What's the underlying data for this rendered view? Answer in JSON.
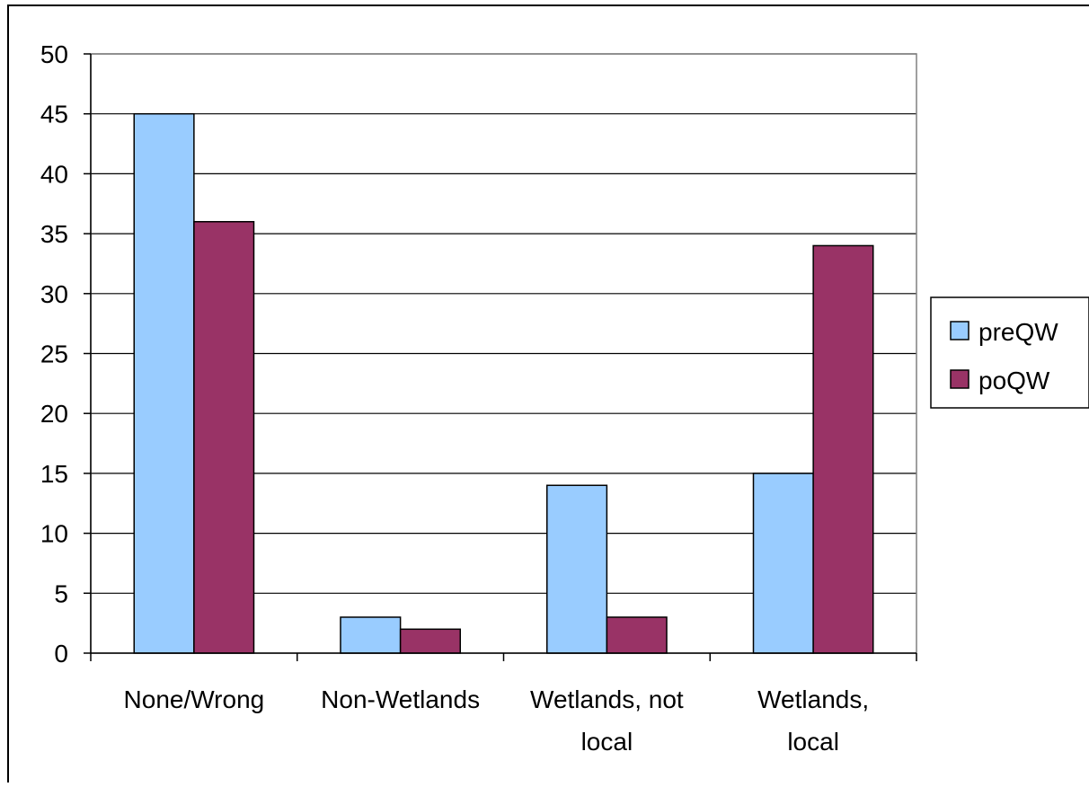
{
  "chart_data": {
    "type": "bar",
    "categories": [
      [
        "None/Wrong"
      ],
      [
        "Non-Wetlands"
      ],
      [
        "Wetlands, not",
        "local"
      ],
      [
        "Wetlands,",
        "local"
      ]
    ],
    "series": [
      {
        "name": "preQW",
        "values": [
          45,
          3,
          14,
          15
        ],
        "color": "#99ccff"
      },
      {
        "name": "poQW",
        "values": [
          36,
          2,
          3,
          34
        ],
        "color": "#993366"
      }
    ],
    "ylim": [
      0,
      50
    ],
    "yticks": [
      0,
      5,
      10,
      15,
      20,
      25,
      30,
      35,
      40,
      45,
      50
    ],
    "grid": true,
    "legend": "right",
    "plot_background": "#ffffff",
    "gridline_color": "#000000",
    "plot_border_color": "#808080"
  }
}
